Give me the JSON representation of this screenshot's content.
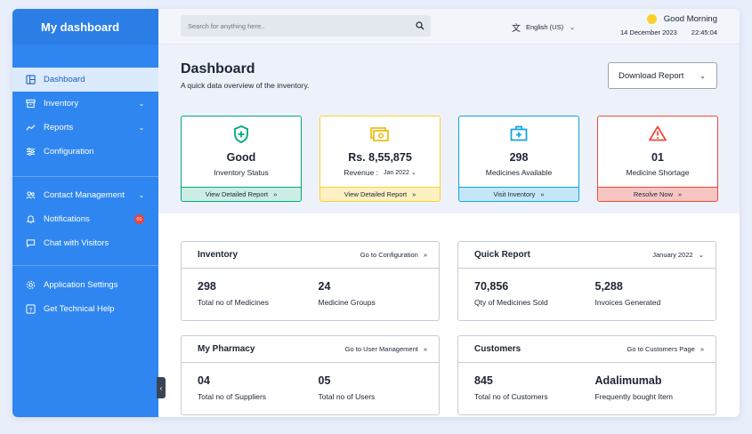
{
  "sidebar": {
    "brand": "My dashboard",
    "items": [
      {
        "label": "Dashboard"
      },
      {
        "label": "Inventory"
      },
      {
        "label": "Reports"
      },
      {
        "label": "Configuration"
      },
      {
        "label": "Contact Management"
      },
      {
        "label": "Notifications",
        "badge": "01"
      },
      {
        "label": "Chat with Visitors"
      },
      {
        "label": "Application Settings"
      },
      {
        "label": "Get Technical Help"
      }
    ]
  },
  "topbar": {
    "search_placeholder": "Search for anything here..",
    "language": "English (US)",
    "greeting": "Good Morning",
    "date": "14 December 2023",
    "time": "22:45:04"
  },
  "page": {
    "title": "Dashboard",
    "subtitle": "A quick data overview of the inventory.",
    "download_label": "Download Report"
  },
  "stats": [
    {
      "value": "Good",
      "label": "Inventory Status",
      "action": "View Detailed Report",
      "color": "#03a67c"
    },
    {
      "value": "Rs. 8,55,875",
      "label": "Revenue :",
      "period": "Jan 2022",
      "action": "View Detailed Report",
      "color": "#fed02b"
    },
    {
      "value": "298",
      "label": "Medicines Available",
      "action": "Visit Inventory",
      "color": "#0fa3df"
    },
    {
      "value": "01",
      "label": "Medicine Shortage",
      "action": "Resolve Now",
      "color": "#f0483e"
    }
  ],
  "panels": {
    "inventory": {
      "title": "Inventory",
      "link": "Go to Configuration",
      "a_value": "298",
      "a_label": "Total no of Medicines",
      "b_value": "24",
      "b_label": "Medicine Groups"
    },
    "quick_report": {
      "title": "Quick Report",
      "link": "January 2022",
      "a_value": "70,856",
      "a_label": "Qty of Medicines Sold",
      "b_value": "5,288",
      "b_label": "Invoices Generated"
    },
    "pharmacy": {
      "title": "My Pharmacy",
      "link": "Go to User Management",
      "a_value": "04",
      "a_label": "Total no of Suppliers",
      "b_value": "05",
      "b_label": "Total no of Users"
    },
    "customers": {
      "title": "Customers",
      "link": "Go to Customers Page",
      "a_value": "845",
      "a_label": "Total no of Customers",
      "b_value": "Adalimumab",
      "b_label": "Frequently bought Item"
    }
  }
}
